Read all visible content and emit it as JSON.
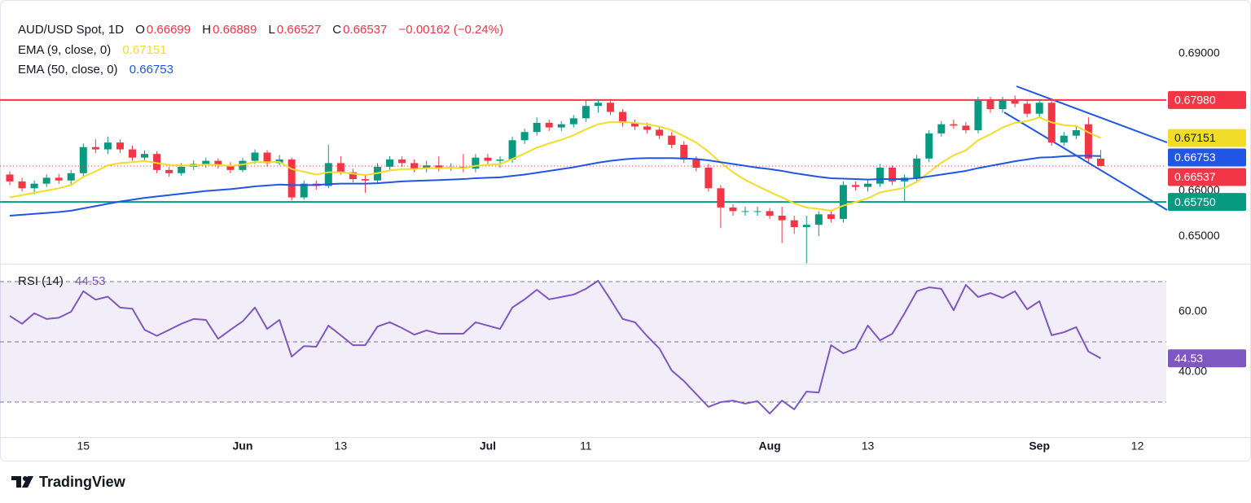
{
  "chart_data": [
    {
      "type": "candlestick",
      "title": "AUD/USD Spot, 1D",
      "ohlc_labels": [
        "O",
        "H",
        "L",
        "C"
      ],
      "change": "−0.00162 (−0.24%)",
      "up_color": "#089981",
      "down_color": "#f23645",
      "categories": [
        null,
        null,
        null,
        null,
        null,
        null,
        "15",
        null,
        null,
        null,
        null,
        null,
        null,
        null,
        null,
        null,
        null,
        null,
        null,
        "Jun",
        null,
        null,
        null,
        null,
        null,
        null,
        null,
        "13",
        null,
        null,
        null,
        null,
        null,
        null,
        null,
        null,
        null,
        null,
        null,
        "Jul",
        null,
        null,
        null,
        null,
        null,
        null,
        null,
        "11",
        null,
        null,
        null,
        null,
        null,
        null,
        null,
        null,
        null,
        null,
        null,
        null,
        null,
        null,
        "Aug",
        null,
        null,
        null,
        null,
        null,
        null,
        null,
        "13",
        null,
        null,
        null,
        null,
        null,
        null,
        null,
        null,
        null,
        null,
        null,
        null,
        null,
        "Sep",
        null,
        null,
        null,
        null,
        null,
        null,
        null,
        "12"
      ],
      "open": [
        0.6635,
        0.662,
        0.6605,
        0.6615,
        0.6628,
        0.6622,
        0.6638,
        0.6695,
        0.669,
        0.6705,
        0.669,
        0.6672,
        0.668,
        0.6645,
        0.6638,
        0.6652,
        0.6658,
        0.6665,
        0.6655,
        0.6645,
        0.6665,
        0.6683,
        0.666,
        0.6668,
        0.6585,
        0.6615,
        0.661,
        0.666,
        0.664,
        0.6625,
        0.6622,
        0.6652,
        0.6668,
        0.666,
        0.6648,
        0.6655,
        0.665,
        0.6652,
        0.6648,
        0.6672,
        0.6665,
        0.6668,
        0.671,
        0.6728,
        0.6748,
        0.6738,
        0.6745,
        0.6758,
        0.6785,
        0.6792,
        0.6772,
        0.6748,
        0.674,
        0.6733,
        0.672,
        0.67,
        0.6668,
        0.665,
        0.6605,
        0.6563,
        0.6555,
        0.6555,
        0.6555,
        0.6545,
        0.6535,
        0.652,
        0.6525,
        0.6548,
        0.6538,
        0.6612,
        0.6608,
        0.6615,
        0.665,
        0.662,
        0.6628,
        0.667,
        0.6725,
        0.6745,
        0.6742,
        0.6732,
        0.6798,
        0.6778,
        0.6798,
        0.679,
        0.6768,
        0.6792,
        0.6705,
        0.672,
        0.6745,
        0.66699,
        null,
        null,
        null
      ],
      "high": [
        0.6642,
        0.6628,
        0.6622,
        0.6635,
        0.6636,
        0.6645,
        0.6703,
        0.6712,
        0.6718,
        0.6712,
        0.6698,
        0.6688,
        0.6686,
        0.6652,
        0.666,
        0.6666,
        0.6672,
        0.667,
        0.6662,
        0.6672,
        0.669,
        0.6688,
        0.6678,
        0.6672,
        0.6622,
        0.6622,
        0.67,
        0.6675,
        0.6648,
        0.6635,
        0.666,
        0.6675,
        0.6675,
        0.6668,
        0.6665,
        0.6675,
        0.666,
        0.668,
        0.668,
        0.668,
        0.6675,
        0.6718,
        0.6735,
        0.676,
        0.6755,
        0.6752,
        0.6765,
        0.6799,
        0.68,
        0.68,
        0.6778,
        0.6755,
        0.6748,
        0.674,
        0.6728,
        0.6708,
        0.6675,
        0.6658,
        0.6612,
        0.657,
        0.6565,
        0.6565,
        0.6562,
        0.6565,
        0.6545,
        0.6545,
        0.6555,
        0.6555,
        0.662,
        0.662,
        0.6622,
        0.6658,
        0.6655,
        0.6635,
        0.6678,
        0.6732,
        0.6752,
        0.6755,
        0.675,
        0.6805,
        0.6805,
        0.6805,
        0.6808,
        0.6798,
        0.68,
        0.6798,
        0.6728,
        0.674,
        0.676,
        0.66889,
        null,
        null,
        null
      ],
      "low": [
        0.6612,
        0.6598,
        0.6592,
        0.6608,
        0.6615,
        0.6612,
        0.663,
        0.6682,
        0.668,
        0.6682,
        0.6665,
        0.6665,
        0.6638,
        0.663,
        0.6632,
        0.6645,
        0.665,
        0.6648,
        0.6638,
        0.664,
        0.6658,
        0.6652,
        0.6655,
        0.6578,
        0.658,
        0.6602,
        0.6605,
        0.6635,
        0.6618,
        0.6595,
        0.6615,
        0.6645,
        0.6652,
        0.664,
        0.664,
        0.6642,
        0.6643,
        0.664,
        0.664,
        0.6658,
        0.665,
        0.666,
        0.6702,
        0.672,
        0.673,
        0.673,
        0.6738,
        0.675,
        0.677,
        0.6765,
        0.674,
        0.6732,
        0.6725,
        0.6712,
        0.6692,
        0.666,
        0.6642,
        0.6598,
        0.6518,
        0.6545,
        0.6545,
        0.6545,
        0.6538,
        0.6485,
        0.6505,
        0.6441,
        0.65,
        0.653,
        0.653,
        0.66,
        0.6598,
        0.6608,
        0.6612,
        0.6575,
        0.662,
        0.6662,
        0.6718,
        0.6735,
        0.6725,
        0.6725,
        0.677,
        0.677,
        0.6782,
        0.676,
        0.676,
        0.6698,
        0.6698,
        0.6712,
        0.6662,
        0.66527,
        null,
        null,
        null
      ],
      "close": [
        0.662,
        0.6605,
        0.6615,
        0.6628,
        0.6622,
        0.6638,
        0.6695,
        0.669,
        0.6705,
        0.669,
        0.6672,
        0.668,
        0.6645,
        0.6638,
        0.6652,
        0.6658,
        0.6665,
        0.6655,
        0.6645,
        0.6665,
        0.6683,
        0.666,
        0.6668,
        0.6585,
        0.6615,
        0.661,
        0.666,
        0.664,
        0.6625,
        0.6622,
        0.6652,
        0.6668,
        0.666,
        0.6648,
        0.6655,
        0.665,
        0.6652,
        0.6648,
        0.6672,
        0.6665,
        0.6668,
        0.671,
        0.6728,
        0.6748,
        0.6738,
        0.6745,
        0.6758,
        0.6785,
        0.6792,
        0.6772,
        0.6748,
        0.674,
        0.6733,
        0.672,
        0.67,
        0.6668,
        0.665,
        0.6605,
        0.6563,
        0.6555,
        0.6555,
        0.6555,
        0.6545,
        0.6535,
        0.652,
        0.6525,
        0.6548,
        0.6538,
        0.6612,
        0.6608,
        0.6615,
        0.665,
        0.662,
        0.6628,
        0.667,
        0.6725,
        0.6745,
        0.6742,
        0.6732,
        0.6798,
        0.6778,
        0.6798,
        0.679,
        0.6768,
        0.6792,
        0.6705,
        0.672,
        0.6732,
        0.667,
        0.66537,
        null,
        null,
        null
      ],
      "series": [
        {
          "name": "EMA (9, close, 0)",
          "color": "#f2dc2a",
          "values": [
            0.6585,
            0.659,
            0.6595,
            0.66,
            0.6605,
            0.6612,
            0.663,
            0.6642,
            0.6655,
            0.666,
            0.6662,
            0.6665,
            0.666,
            0.6656,
            0.6655,
            0.6655,
            0.6657,
            0.6656,
            0.6654,
            0.6657,
            0.6662,
            0.6662,
            0.6663,
            0.6647,
            0.6641,
            0.6635,
            0.664,
            0.664,
            0.6637,
            0.6634,
            0.6638,
            0.6644,
            0.6647,
            0.6647,
            0.6649,
            0.6649,
            0.665,
            0.6649,
            0.6654,
            0.6656,
            0.6658,
            0.6669,
            0.6681,
            0.6694,
            0.6703,
            0.6711,
            0.6721,
            0.6734,
            0.6745,
            0.675,
            0.675,
            0.6748,
            0.6745,
            0.674,
            0.6732,
            0.6719,
            0.6705,
            0.6685,
            0.6661,
            0.664,
            0.6623,
            0.661,
            0.6597,
            0.6585,
            0.6572,
            0.6563,
            0.656,
            0.6556,
            0.6567,
            0.6575,
            0.6583,
            0.6596,
            0.6601,
            0.6606,
            0.6619,
            0.664,
            0.6661,
            0.6677,
            0.6688,
            0.671,
            0.6723,
            0.6738,
            0.6748,
            0.6752,
            0.676,
            0.6749,
            0.6743,
            0.6741,
            0.6727,
            0.67151,
            null,
            null,
            null
          ]
        },
        {
          "name": "EMA (50, close, 0)",
          "color": "#2155e6",
          "values": [
            0.6545,
            0.6547,
            0.6549,
            0.6551,
            0.6553,
            0.6556,
            0.6561,
            0.6566,
            0.6571,
            0.6576,
            0.658,
            0.6584,
            0.6587,
            0.659,
            0.6593,
            0.6596,
            0.6599,
            0.6601,
            0.6603,
            0.6606,
            0.6609,
            0.6611,
            0.6613,
            0.6612,
            0.6612,
            0.6612,
            0.6614,
            0.6615,
            0.6615,
            0.6615,
            0.6616,
            0.6618,
            0.662,
            0.6621,
            0.6622,
            0.6623,
            0.6624,
            0.6625,
            0.6627,
            0.6628,
            0.6629,
            0.6632,
            0.6635,
            0.6639,
            0.6643,
            0.6647,
            0.6651,
            0.6656,
            0.6661,
            0.6665,
            0.6668,
            0.667,
            0.6671,
            0.6671,
            0.6671,
            0.667,
            0.6669,
            0.6666,
            0.6662,
            0.6658,
            0.6654,
            0.665,
            0.6647,
            0.6643,
            0.6638,
            0.6634,
            0.663,
            0.6627,
            0.6626,
            0.6625,
            0.6624,
            0.6625,
            0.6625,
            0.6625,
            0.6627,
            0.6631,
            0.6635,
            0.6639,
            0.6643,
            0.6649,
            0.6654,
            0.6659,
            0.6664,
            0.6668,
            0.6672,
            0.6673,
            0.6675,
            0.6676,
            0.6676,
            0.66753,
            null,
            null,
            null
          ]
        }
      ],
      "levels": [
        {
          "value": 0.6798,
          "label": "0.67980",
          "color": "#f23645"
        },
        {
          "value": 0.6575,
          "label": "0.65750",
          "color": "#089981"
        }
      ],
      "ylim": [
        0.644,
        0.699
      ],
      "yticks": [
        {
          "value": 0.69,
          "label": "0.69000"
        },
        {
          "value": 0.66,
          "label": "0.66000"
        },
        {
          "value": 0.65,
          "label": "0.65000"
        }
      ]
    },
    {
      "type": "line",
      "series": [
        {
          "name": "RSI (14)",
          "color": "#7e57c2",
          "values": [
            58.6,
            56,
            59.5,
            57.6,
            58,
            60,
            66.8,
            64,
            65,
            61.4,
            61,
            54,
            52,
            54,
            56,
            57.6,
            57.3,
            51,
            54,
            56.8,
            61.4,
            54.3,
            57.3,
            45.1,
            48.6,
            48.4,
            55.4,
            52.2,
            48.9,
            48.9,
            55.1,
            56.5,
            54.6,
            52.4,
            53.8,
            52.7,
            52.7,
            52.7,
            56.5,
            55.4,
            54.3,
            61.4,
            64.1,
            67.3,
            64.1,
            64.9,
            65.7,
            67.6,
            70.3,
            64.1,
            57.6,
            56.5,
            51.9,
            47.8,
            40.5,
            37,
            32.7,
            28.4,
            30,
            30.5,
            29.5,
            30.3,
            26.2,
            30.5,
            27.6,
            33.5,
            33.2,
            48.9,
            46.2,
            47.8,
            55.4,
            50.5,
            52.7,
            59.5,
            66.8,
            68.1,
            67.6,
            60.5,
            68.9,
            64.9,
            66.2,
            64.6,
            66.8,
            60.8,
            63.5,
            52.2,
            53.2,
            54.9,
            46.8,
            44.53,
            null,
            null,
            null
          ]
        }
      ],
      "levels": [
        70,
        50,
        30
      ],
      "band_color": "#7e57c2",
      "ylim": [
        18.4,
        75.4
      ],
      "yticks": [
        {
          "value": 60,
          "label": "60.00"
        },
        {
          "value": 40,
          "label": "40.00"
        }
      ]
    }
  ],
  "brand": "TradingView"
}
